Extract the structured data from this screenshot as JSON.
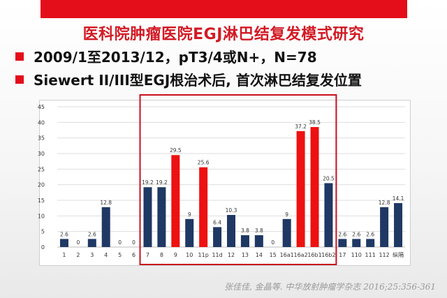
{
  "slide": {
    "title": "医科院肿瘤医院EGJ淋巴结复发模式研究",
    "bullets": [
      "2009/1至2013/12，pT3/4或N+，N=78",
      "Siewert II/III型EGJ根治术后, 首次淋巴结复发位置"
    ],
    "citation": "张佳佳, 金晶等. 中华放射肿瘤学杂志 2016;25:356-361"
  },
  "chart_data": {
    "type": "bar",
    "categories": [
      "1",
      "2",
      "3",
      "4",
      "5",
      "6",
      "7",
      "8",
      "9",
      "10",
      "11p",
      "11d",
      "12",
      "13",
      "14",
      "15",
      "16a1",
      "16a2",
      "16b1",
      "16b2",
      "17",
      "110",
      "111",
      "112",
      "纵隔"
    ],
    "values": [
      2.6,
      0,
      2.6,
      12.8,
      0,
      0,
      19.2,
      19.2,
      29.5,
      9,
      25.6,
      6.4,
      10.3,
      3.8,
      3.8,
      0,
      9,
      37.2,
      38.5,
      20.5,
      2.6,
      2.6,
      2.6,
      12.8,
      14.1
    ],
    "value_labels": [
      "2.6",
      "0",
      "2.6",
      "12.8",
      "0",
      "0",
      "19.2",
      "19.2",
      "29.5",
      "9",
      "25.6",
      "6.4",
      "10.3",
      "3.8",
      "3.8",
      "0",
      "9",
      "37.2",
      "38.5",
      "20.5",
      "2.6",
      "2.6",
      "2.6",
      "12.8",
      "14.1"
    ],
    "highlighted": [
      false,
      false,
      false,
      false,
      false,
      false,
      false,
      false,
      true,
      false,
      true,
      false,
      false,
      false,
      false,
      false,
      false,
      true,
      true,
      false,
      false,
      false,
      false,
      false,
      false
    ],
    "y_ticks": [
      0,
      5,
      10,
      15,
      20,
      25,
      30,
      35,
      40,
      45
    ],
    "ylim": [
      0,
      45
    ],
    "grid": true,
    "colors": {
      "default": "#1f3864",
      "highlight": "#ee1111",
      "frame": "#c8101d"
    },
    "highlight_frame": {
      "from_category": "7",
      "to_category": "16b2"
    }
  }
}
